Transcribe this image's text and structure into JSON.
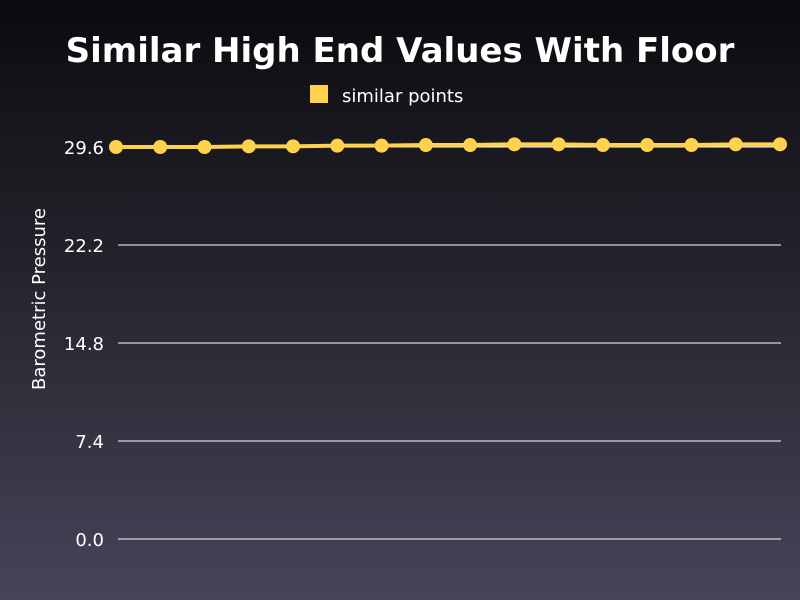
{
  "chart_data": {
    "type": "line",
    "title": "Similar High End Values With Floor",
    "ylabel": "Barometric Pressure",
    "xlabel": "",
    "ylim": [
      0,
      29.6
    ],
    "yticks": [
      "0.0",
      "7.4",
      "14.8",
      "22.2",
      "29.6"
    ],
    "ytick_values": [
      0,
      7.4,
      14.8,
      22.2,
      29.6
    ],
    "grid": true,
    "legend_position": "top-center",
    "series": [
      {
        "name": "similar points",
        "color": "#ffd24d",
        "values": [
          29.6,
          29.6,
          29.6,
          29.65,
          29.65,
          29.7,
          29.7,
          29.75,
          29.75,
          29.8,
          29.8,
          29.75,
          29.75,
          29.75,
          29.8,
          29.8
        ]
      }
    ]
  }
}
